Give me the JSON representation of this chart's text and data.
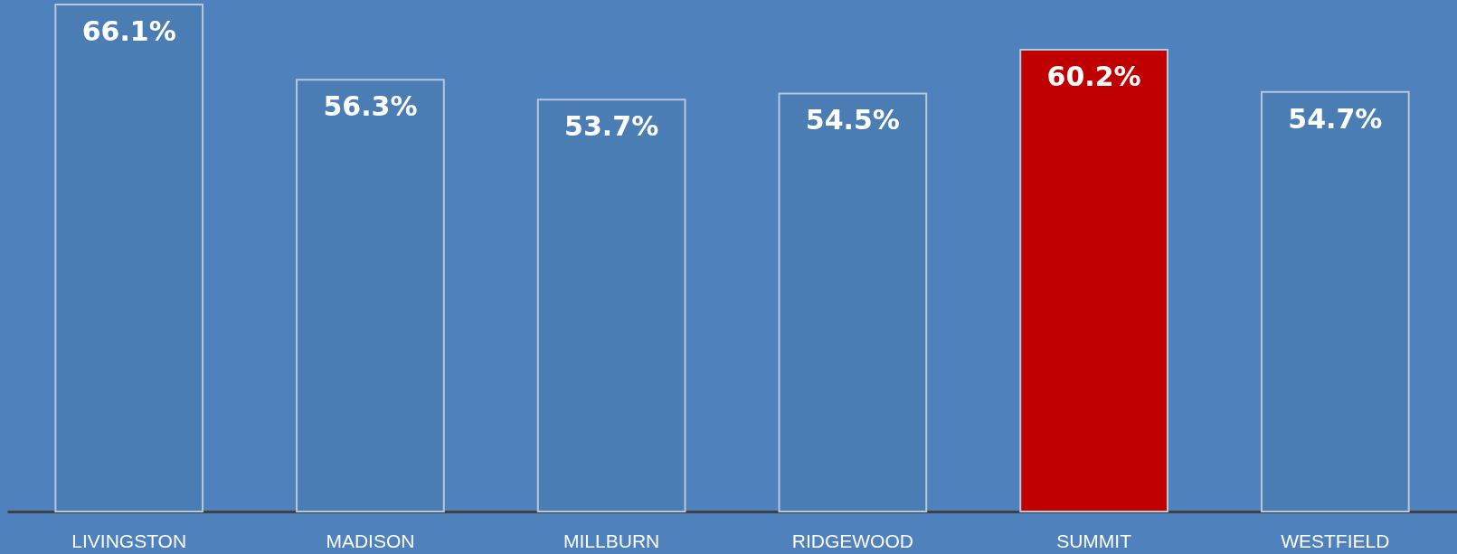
{
  "chart_data": {
    "type": "bar",
    "categories": [
      "LIVINGSTON",
      "MADISON",
      "MILLBURN",
      "RIDGEWOOD",
      "SUMMIT",
      "WESTFIELD"
    ],
    "values": [
      66.1,
      56.3,
      53.7,
      54.5,
      60.2,
      54.7
    ],
    "colors": [
      "#4a7db3",
      "#4a7db3",
      "#4a7db3",
      "#4a7db3",
      "#c00000",
      "#4a7db3"
    ],
    "value_labels": [
      "66.1%",
      "56.3%",
      "53.7%",
      "54.5%",
      "60.2%",
      "54.7%"
    ],
    "grid": false
  }
}
